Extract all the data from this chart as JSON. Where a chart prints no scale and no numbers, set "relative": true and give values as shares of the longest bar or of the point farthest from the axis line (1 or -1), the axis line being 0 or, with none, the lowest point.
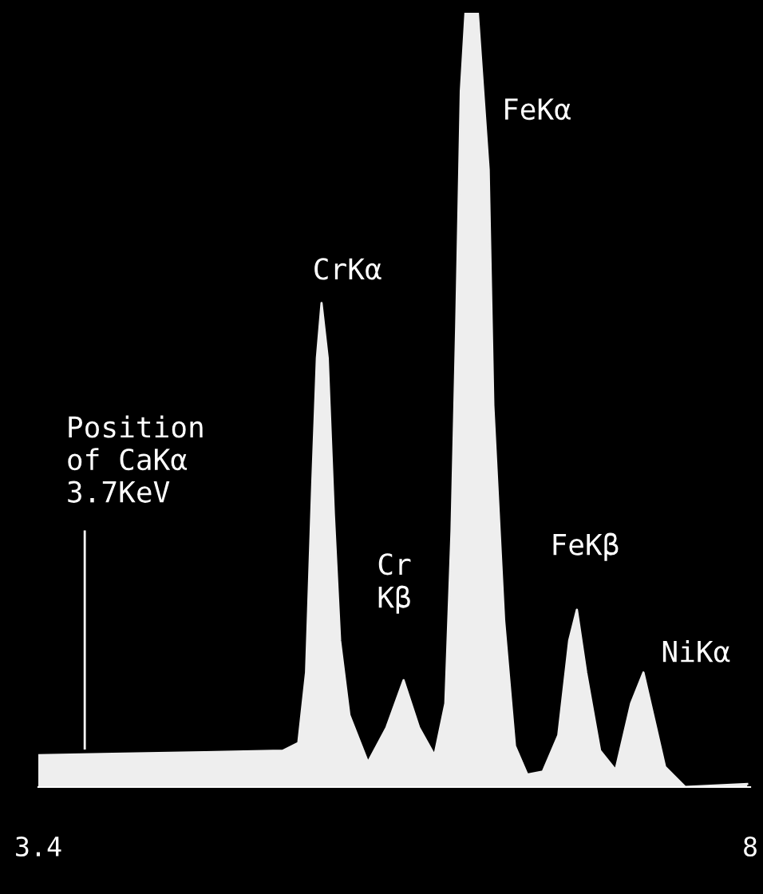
{
  "chart_data": {
    "type": "area",
    "relative": true,
    "x": [
      3.4,
      3.88,
      4.48,
      4.98,
      5.08,
      5.13,
      5.17,
      5.2,
      5.23,
      5.27,
      5.31,
      5.35,
      5.41,
      5.53,
      5.65,
      5.76,
      5.86,
      5.96,
      6.03,
      6.07,
      6.1,
      6.13,
      6.16,
      6.24,
      6.31,
      6.34,
      6.41,
      6.48,
      6.56,
      6.66,
      6.76,
      6.83,
      6.88,
      6.94,
      7.03,
      7.13,
      7.23,
      7.31,
      7.38,
      7.45,
      7.58,
      7.98
    ],
    "series": [
      {
        "color": "#eeeeee",
        "values": [
          0.041,
          0.043,
          0.045,
          0.047,
          0.057,
          0.148,
          0.391,
          0.554,
          0.625,
          0.554,
          0.351,
          0.189,
          0.093,
          0.032,
          0.077,
          0.138,
          0.077,
          0.041,
          0.108,
          0.331,
          0.594,
          0.899,
          1,
          1,
          0.797,
          0.493,
          0.215,
          0.053,
          0.016,
          0.02,
          0.067,
          0.189,
          0.229,
          0.148,
          0.047,
          0.022,
          0.108,
          0.148,
          0.087,
          0.026,
          0,
          0.004
        ]
      }
    ],
    "xlim": [
      3.4,
      8
    ],
    "xticks": [
      3.4,
      8
    ],
    "ref_lines": [
      {
        "axis": "x",
        "value": 3.7,
        "label": "Position\nof CaKα\n3.7KeV",
        "color": "#ffffff"
      }
    ],
    "annotations": [
      {
        "text": "CrKα",
        "x": 5.23,
        "y": 0.625
      },
      {
        "text": "FeKα",
        "x": 6.31,
        "y": 0.797
      },
      {
        "text": "Cr\nKβ",
        "x": 5.76,
        "y": 0.138
      },
      {
        "text": "FeKβ",
        "x": 6.88,
        "y": 0.229
      },
      {
        "text": "NiKα",
        "x": 7.31,
        "y": 0.148
      }
    ],
    "grid": false,
    "legend": false
  }
}
